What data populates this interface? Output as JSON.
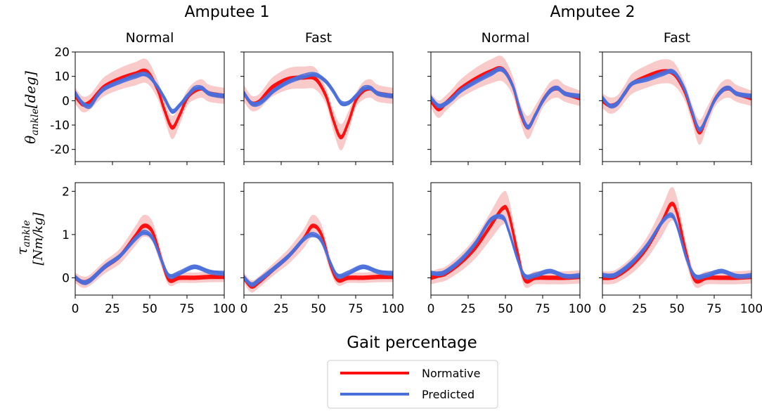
{
  "figure": {
    "group_titles": [
      "Amputee 1",
      "Amputee 2"
    ],
    "xlabel": "Gait percentage",
    "legend": [
      {
        "label": "Normative",
        "color": "#ff1010"
      },
      {
        "label": "Predicted",
        "color": "#4a6fdc"
      }
    ],
    "band_color": "#f6b3b3",
    "ylabel_angle": {
      "main": "θ",
      "sub": "ankle",
      "unit": "[deg]"
    },
    "ylabel_torque": {
      "main": "τ",
      "sub": "ankle",
      "unit": "[Nm/kg]"
    }
  },
  "chart_data": [
    {
      "type": "line",
      "group": "Amputee 1",
      "title": "Normal",
      "row": "angle",
      "xlim": [
        0,
        100
      ],
      "ylim": [
        -25,
        20
      ],
      "xticks": [
        0,
        25,
        50,
        75,
        100
      ],
      "yticks": [
        -20,
        -10,
        0,
        10,
        20
      ],
      "x": [
        0,
        5,
        10,
        15,
        20,
        30,
        40,
        48,
        55,
        60,
        65,
        70,
        75,
        80,
        85,
        90,
        100
      ],
      "series": [
        {
          "name": "Normative",
          "values": [
            2,
            -1.5,
            -0.5,
            3,
            6,
            9,
            11,
            12,
            5,
            -4,
            -11,
            -6,
            1,
            4,
            5,
            3,
            2
          ],
          "band": 3
        },
        {
          "name": "Predicted",
          "values": [
            3,
            -1,
            -2,
            2,
            5,
            8,
            10,
            10.5,
            6,
            1,
            -4.5,
            -2,
            2,
            5,
            5,
            3,
            2
          ],
          "runs": 6
        }
      ]
    },
    {
      "type": "line",
      "group": "Amputee 1",
      "title": "Fast",
      "row": "angle",
      "xlim": [
        0,
        100
      ],
      "ylim": [
        -25,
        20
      ],
      "xticks": [
        0,
        25,
        50,
        75,
        100
      ],
      "yticks": [
        -20,
        -10,
        0,
        10,
        20
      ],
      "x": [
        0,
        5,
        10,
        15,
        20,
        30,
        40,
        48,
        55,
        60,
        65,
        70,
        75,
        80,
        85,
        90,
        100
      ],
      "series": [
        {
          "name": "Normative",
          "values": [
            3,
            -1,
            -0.5,
            3,
            6,
            9,
            9.5,
            9,
            2,
            -8,
            -15,
            -9,
            0,
            4,
            5,
            3,
            2
          ],
          "band": 3
        },
        {
          "name": "Predicted",
          "values": [
            3,
            -1,
            -1,
            1,
            4,
            8,
            10,
            10.5,
            8,
            4,
            -1,
            -1,
            2,
            5,
            5,
            3,
            2
          ],
          "runs": 6
        }
      ]
    },
    {
      "type": "line",
      "group": "Amputee 2",
      "title": "Normal",
      "row": "angle",
      "xlim": [
        0,
        100
      ],
      "ylim": [
        -25,
        20
      ],
      "xticks": [
        0,
        25,
        50,
        75,
        100
      ],
      "yticks": [
        -20,
        -10,
        0,
        10,
        20
      ],
      "x": [
        0,
        5,
        10,
        15,
        20,
        30,
        40,
        48,
        55,
        60,
        65,
        70,
        75,
        80,
        85,
        90,
        100
      ],
      "series": [
        {
          "name": "Normative",
          "values": [
            0,
            -3.5,
            -1,
            2,
            5,
            9,
            12,
            13,
            6,
            -5,
            -11,
            -6,
            0,
            4,
            5,
            3,
            1
          ],
          "band": 3
        },
        {
          "name": "Predicted",
          "values": [
            1,
            -2,
            -1,
            1,
            4,
            8,
            11,
            12.5,
            6,
            -4,
            -11,
            -6,
            0,
            4,
            5,
            3,
            2
          ],
          "runs": 6
        }
      ]
    },
    {
      "type": "line",
      "group": "Amputee 2",
      "title": "Fast",
      "row": "angle",
      "xlim": [
        0,
        100
      ],
      "ylim": [
        -25,
        20
      ],
      "xticks": [
        0,
        25,
        50,
        75,
        100
      ],
      "yticks": [
        -20,
        -10,
        0,
        10,
        20
      ],
      "x": [
        0,
        5,
        10,
        15,
        20,
        30,
        40,
        48,
        55,
        60,
        65,
        70,
        75,
        80,
        85,
        90,
        100
      ],
      "series": [
        {
          "name": "Normative",
          "values": [
            0,
            -2,
            -1,
            3,
            7,
            10,
            12,
            11,
            4,
            -5,
            -13,
            -7,
            0,
            4,
            5,
            3,
            1
          ],
          "band": 3
        },
        {
          "name": "Predicted",
          "values": [
            1,
            -2,
            -1,
            3,
            7,
            9,
            11,
            11.5,
            5,
            -4,
            -12,
            -7,
            0,
            4,
            5,
            3,
            2
          ],
          "runs": 6
        }
      ]
    },
    {
      "type": "line",
      "group": "Amputee 1",
      "title": "Normal",
      "row": "torque",
      "xlim": [
        0,
        100
      ],
      "ylim": [
        -0.4,
        2.2
      ],
      "xticks": [
        0,
        25,
        50,
        75,
        100
      ],
      "yticks": [
        0,
        1,
        2
      ],
      "x": [
        0,
        5,
        10,
        20,
        30,
        40,
        46,
        52,
        58,
        63,
        70,
        80,
        90,
        100
      ],
      "series": [
        {
          "name": "Normative",
          "values": [
            0,
            -0.1,
            -0.05,
            0.25,
            0.5,
            0.95,
            1.2,
            1.05,
            0.4,
            -0.05,
            0,
            0,
            0.02,
            0.02
          ],
          "band": 0.12
        },
        {
          "name": "Predicted",
          "values": [
            0,
            -0.1,
            -0.05,
            0.25,
            0.5,
            0.9,
            1.05,
            0.9,
            0.4,
            0.05,
            0.1,
            0.25,
            0.15,
            0.1
          ],
          "runs": 6
        }
      ]
    },
    {
      "type": "line",
      "group": "Amputee 1",
      "title": "Fast",
      "row": "torque",
      "xlim": [
        0,
        100
      ],
      "ylim": [
        -0.4,
        2.2
      ],
      "xticks": [
        0,
        25,
        50,
        75,
        100
      ],
      "yticks": [
        0,
        1,
        2
      ],
      "x": [
        0,
        5,
        10,
        20,
        30,
        40,
        46,
        52,
        58,
        63,
        70,
        80,
        90,
        100
      ],
      "series": [
        {
          "name": "Normative",
          "values": [
            0,
            -0.2,
            -0.1,
            0.2,
            0.5,
            0.9,
            1.2,
            1.0,
            0.3,
            -0.05,
            0,
            0,
            0.02,
            0.02
          ],
          "band": 0.12
        },
        {
          "name": "Predicted",
          "values": [
            0,
            -0.15,
            -0.05,
            0.2,
            0.5,
            0.9,
            1.0,
            0.85,
            0.35,
            0.05,
            0.1,
            0.25,
            0.15,
            0.1
          ],
          "runs": 6
        }
      ]
    },
    {
      "type": "line",
      "group": "Amputee 2",
      "title": "Normal",
      "row": "torque",
      "xlim": [
        0,
        100
      ],
      "ylim": [
        -0.4,
        2.2
      ],
      "xticks": [
        0,
        25,
        50,
        75,
        100
      ],
      "yticks": [
        0,
        1,
        2
      ],
      "x": [
        0,
        5,
        10,
        20,
        30,
        40,
        48,
        52,
        58,
        63,
        70,
        80,
        90,
        100
      ],
      "series": [
        {
          "name": "Normative",
          "values": [
            0,
            0.05,
            0.1,
            0.35,
            0.7,
            1.2,
            1.6,
            1.5,
            0.6,
            -0.05,
            0,
            0,
            0,
            0.02
          ],
          "band": 0.15
        },
        {
          "name": "Predicted",
          "values": [
            0.1,
            0.1,
            0.15,
            0.4,
            0.8,
            1.35,
            1.4,
            1.1,
            0.45,
            0.05,
            0.05,
            0.15,
            0.05,
            0.05
          ],
          "runs": 6
        }
      ]
    },
    {
      "type": "line",
      "group": "Amputee 2",
      "title": "Fast",
      "row": "torque",
      "xlim": [
        0,
        100
      ],
      "ylim": [
        -0.4,
        2.2
      ],
      "xticks": [
        0,
        25,
        50,
        75,
        100
      ],
      "yticks": [
        0,
        1,
        2
      ],
      "x": [
        0,
        5,
        10,
        20,
        30,
        40,
        46,
        50,
        56,
        62,
        70,
        80,
        90,
        100
      ],
      "series": [
        {
          "name": "Normative",
          "values": [
            0,
            0,
            0.05,
            0.3,
            0.7,
            1.3,
            1.7,
            1.5,
            0.6,
            -0.05,
            0,
            0,
            0,
            0.02
          ],
          "band": 0.15
        },
        {
          "name": "Predicted",
          "values": [
            0.05,
            0.05,
            0.1,
            0.35,
            0.75,
            1.3,
            1.45,
            1.2,
            0.5,
            0.05,
            0.05,
            0.15,
            0.05,
            0.05
          ],
          "runs": 6
        }
      ]
    }
  ]
}
